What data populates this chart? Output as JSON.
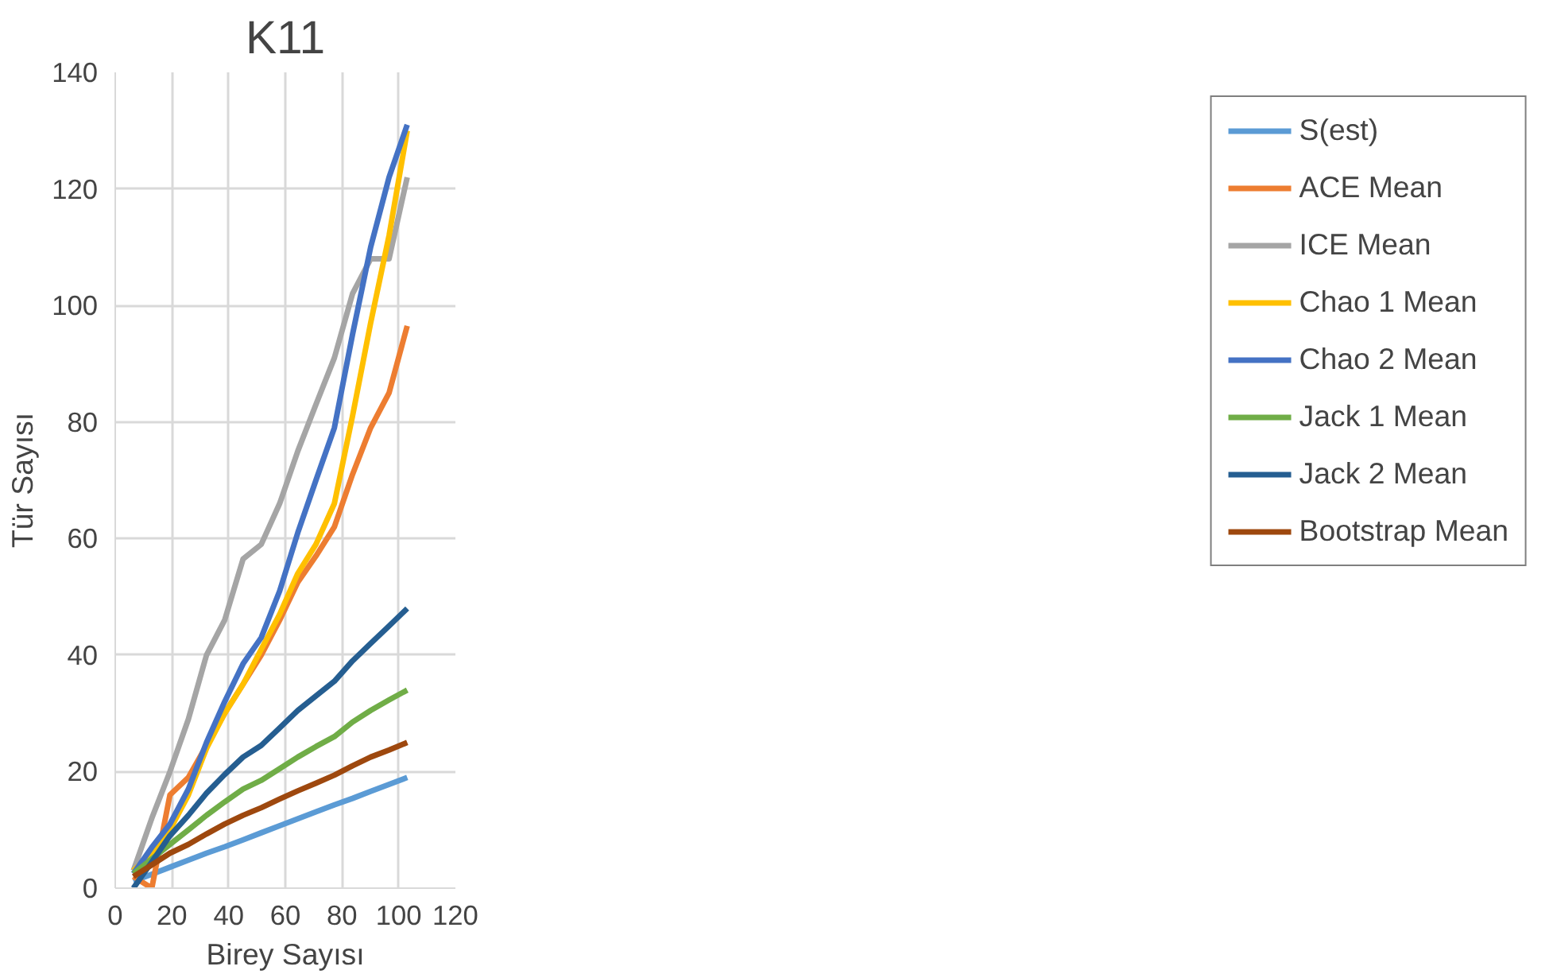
{
  "chart_data": {
    "type": "line",
    "title": "K11",
    "xlabel": "Birey Sayısı",
    "ylabel": "Tür Sayısı",
    "x": [
      6.4,
      12.9,
      19.3,
      25.8,
      32.2,
      38.6,
      45.1,
      51.5,
      58,
      64.4,
      70.8,
      77.3,
      83.7,
      90.1,
      96.6,
      103
    ],
    "xlim": [
      0,
      120
    ],
    "xticks": [
      0,
      20,
      40,
      60,
      80,
      100,
      120
    ],
    "ylim": [
      0,
      140
    ],
    "yticks": [
      0,
      20,
      40,
      60,
      80,
      100,
      120,
      140
    ],
    "grid": true,
    "legend": "right",
    "marker": "none",
    "line_style": "solid",
    "series": [
      {
        "name": "S(est)",
        "color": "#5b9bd5",
        "values": [
          1.2,
          2.4,
          3.6,
          4.8,
          6,
          7.1,
          8.3,
          9.5,
          10.7,
          11.9,
          13.1,
          14.3,
          15.4,
          16.6,
          17.8,
          19
        ]
      },
      {
        "name": "ACE Mean",
        "color": "#ed7d31",
        "values": [
          2,
          0,
          16,
          19,
          24.5,
          30,
          35,
          40,
          46,
          52.5,
          57,
          62,
          71,
          79,
          85,
          96.5
        ]
      },
      {
        "name": "ICE Mean",
        "color": "#a5a5a5",
        "values": [
          3,
          12,
          20,
          29,
          40,
          46,
          56.5,
          59,
          66,
          75,
          83,
          91,
          102,
          108,
          108,
          122
        ]
      },
      {
        "name": "Chao 1 Mean",
        "color": "#ffc000",
        "values": [
          3,
          6,
          10,
          16,
          24,
          30,
          35,
          41,
          47,
          54,
          59,
          66,
          81,
          97,
          112,
          130
        ]
      },
      {
        "name": "Chao 2 Mean",
        "color": "#4472c4",
        "values": [
          2.5,
          7,
          11,
          17,
          25,
          32,
          38.5,
          43,
          51,
          61,
          70,
          79,
          95,
          110,
          122,
          131
        ]
      },
      {
        "name": "Jack 1 Mean",
        "color": "#70ad47",
        "values": [
          2.5,
          5,
          7.5,
          10,
          12.5,
          14.8,
          17,
          18.5,
          20.5,
          22.5,
          24.3,
          26,
          28.5,
          30.5,
          32.3,
          34
        ]
      },
      {
        "name": "Jack 2 Mean",
        "color": "#255e91",
        "values": [
          0,
          4.5,
          9,
          12.5,
          16.3,
          19.5,
          22.5,
          24.5,
          27.5,
          30.5,
          33,
          35.5,
          39,
          42,
          45,
          48
        ]
      },
      {
        "name": "Bootstrap Mean",
        "color": "#9e480e",
        "values": [
          2,
          4,
          6,
          7.5,
          9.3,
          11,
          12.5,
          13.8,
          15.3,
          16.7,
          18,
          19.4,
          21,
          22.5,
          23.7,
          25
        ]
      }
    ]
  }
}
